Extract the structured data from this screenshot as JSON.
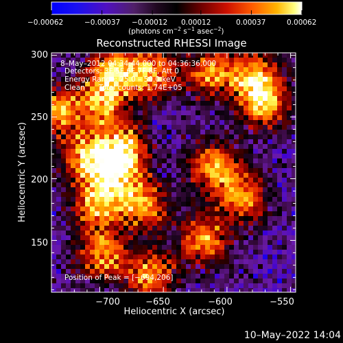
{
  "chart_data": {
    "type": "heatmap",
    "title": "Reconstructed RHESSI Image",
    "xlabel": "Heliocentric X (arcsec)",
    "ylabel": "Heliocentric Y (arcsec)",
    "xlim": [
      -738,
      -546
    ],
    "ylim": [
      108,
      302
    ],
    "x_ticks": [
      -700,
      -650,
      -600,
      -550
    ],
    "x_tick_labels": [
      "−700",
      "−650",
      "−600",
      "−550"
    ],
    "y_ticks": [
      150,
      200,
      250,
      300
    ],
    "y_tick_labels": [
      "150",
      "200",
      "250",
      "300"
    ],
    "colorbar": {
      "min": -0.00062,
      "max": 0.00062,
      "ticks": [
        -0.00062,
        -0.00037,
        -0.00012,
        0.00012,
        0.00037,
        0.00062
      ],
      "tick_labels": [
        "−0.00062",
        "−0.00037",
        "−0.00012",
        "0.00012",
        "0.00037",
        "0.00062"
      ],
      "label_main": "(photons cm",
      "label_sup1": "−2",
      "label_mid1": " s",
      "label_sup2": "−1",
      "label_mid2": " asec",
      "label_sup3": "−2",
      "label_end": ")",
      "colormap": [
        "#0000ff",
        "#3a00d8",
        "#6a1aa8",
        "#3a0a40",
        "#000000",
        "#7a0000",
        "#d01000",
        "#ff5a00",
        "#ffb000",
        "#ffff60",
        "#ffffff"
      ]
    },
    "annotations": [
      "8–May–2012 04:34:44.000 to 04:36:36.000",
      "Detectors: 3F 5F 6F 7F 8F, Att 0",
      "Energy Range: 25.0 – 50.0 keV",
      "Clean      Total counts: 1.74E+05"
    ],
    "peak_label": "Position of Peak = [−694,206]",
    "peak": [
      -694,
      206
    ],
    "bright_regions_xy": [
      [
        -690,
        290
      ],
      [
        -660,
        287
      ],
      [
        -615,
        288
      ],
      [
        -580,
        285
      ],
      [
        -735,
        256
      ],
      [
        -700,
        264
      ],
      [
        -572,
        262
      ],
      [
        -690,
        206
      ],
      [
        -683,
        228
      ],
      [
        -712,
        220
      ],
      [
        -705,
        180
      ],
      [
        -668,
        180
      ],
      [
        -612,
        212
      ],
      [
        -590,
        187
      ],
      [
        -620,
        152
      ],
      [
        -662,
        124
      ],
      [
        -700,
        140
      ]
    ]
  },
  "footer_timestamp": "10–May–2022 14:04"
}
